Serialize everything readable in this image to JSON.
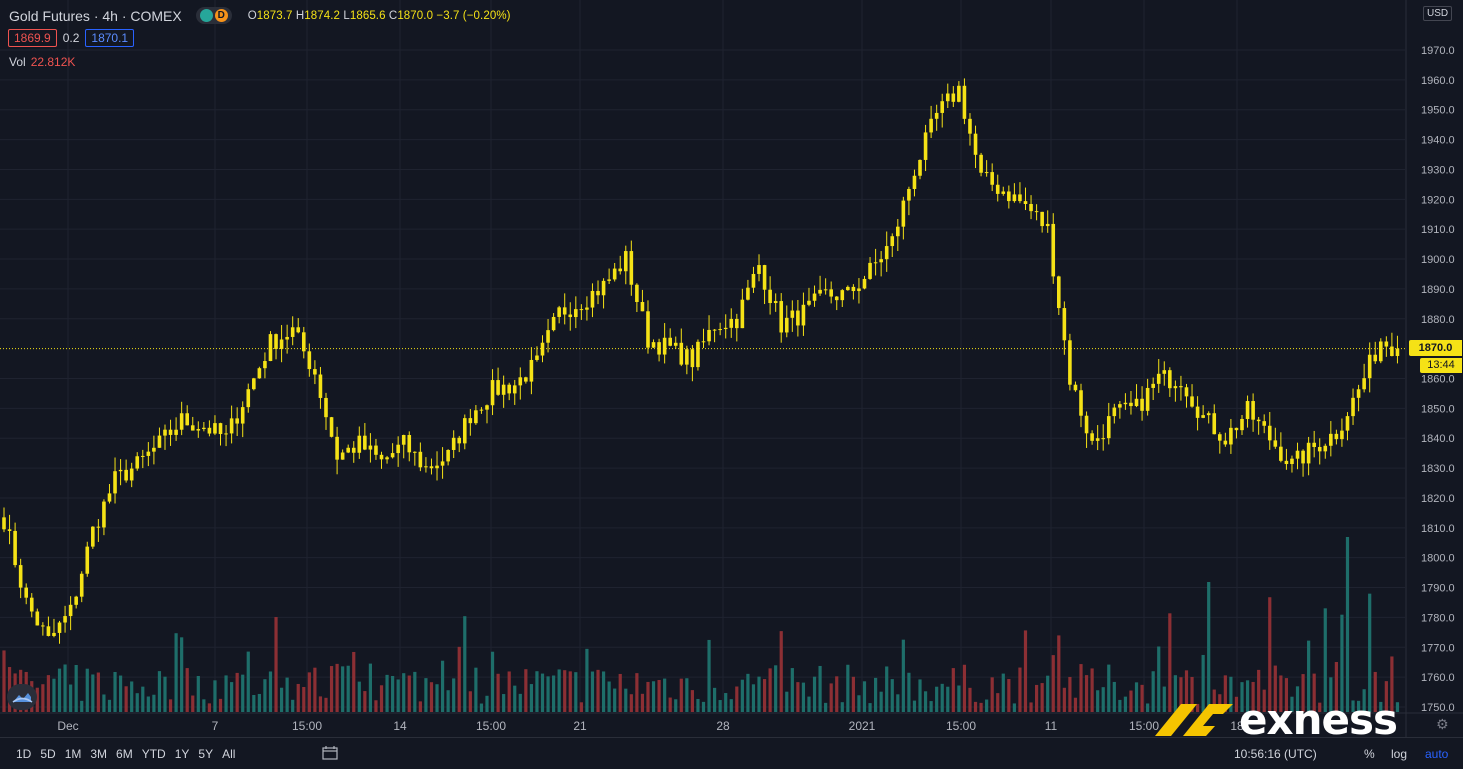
{
  "header": {
    "symbol": "Gold Futures · 4h · COMEX",
    "badge_d": "D",
    "ohlc": {
      "o_label": "O",
      "o": "1873.7",
      "h_label": "H",
      "h": "1874.2",
      "l_label": "L",
      "l": "1865.6",
      "c_label": "C",
      "c": "1870.0",
      "change": "−3.7 (−0.20%)"
    },
    "bid": "1869.9",
    "spread": "0.2",
    "ask": "1870.1",
    "vol_label": "Vol",
    "vol_value": "22.812K"
  },
  "price_axis": {
    "currency": "USD",
    "current_price": "1870.0",
    "countdown": "13:44",
    "ticks": [
      "1970.0",
      "1960.0",
      "1950.0",
      "1940.0",
      "1930.0",
      "1920.0",
      "1910.0",
      "1900.0",
      "1890.0",
      "1880.0",
      "1860.0",
      "1850.0",
      "1840.0",
      "1830.0",
      "1820.0",
      "1810.0",
      "1800.0",
      "1790.0",
      "1780.0",
      "1770.0",
      "1760.0",
      "1750.0"
    ]
  },
  "time_axis": {
    "labels": [
      "Dec",
      "7",
      "15:00",
      "14",
      "15:00",
      "21",
      "28",
      "2021",
      "15:00",
      "11",
      "15:00",
      "18"
    ]
  },
  "bottom_bar": {
    "ranges": [
      "1D",
      "5D",
      "1M",
      "3M",
      "6M",
      "YTD",
      "1Y",
      "5Y",
      "All"
    ],
    "clock": "10:56:16 (UTC)",
    "percent": "%",
    "log": "log",
    "auto": "auto"
  },
  "branding": {
    "logo_text": "exness"
  },
  "colors": {
    "candle": "#f5e216",
    "vol_up": "#1e6e6a",
    "vol_down": "#8c2f34",
    "background": "#131722",
    "grid": "#1f2330",
    "axis_text": "#b2b5be"
  },
  "chart_data": {
    "type": "candlestick",
    "title": "",
    "xlabel": "",
    "ylabel": "",
    "ylim": [
      1745,
      1975
    ],
    "current_price": 1870.0,
    "close_path": [
      [
        0,
        1813
      ],
      [
        4,
        1785
      ],
      [
        8,
        1772
      ],
      [
        12,
        1782
      ],
      [
        16,
        1809
      ],
      [
        20,
        1826
      ],
      [
        24,
        1831
      ],
      [
        28,
        1838
      ],
      [
        32,
        1846
      ],
      [
        36,
        1844
      ],
      [
        40,
        1840
      ],
      [
        44,
        1856
      ],
      [
        48,
        1872
      ],
      [
        52,
        1876
      ],
      [
        56,
        1862
      ],
      [
        60,
        1834
      ],
      [
        64,
        1838
      ],
      [
        68,
        1832
      ],
      [
        72,
        1838
      ],
      [
        76,
        1830
      ],
      [
        80,
        1834
      ],
      [
        84,
        1848
      ],
      [
        88,
        1856
      ],
      [
        92,
        1858
      ],
      [
        96,
        1865
      ],
      [
        100,
        1882
      ],
      [
        104,
        1886
      ],
      [
        108,
        1891
      ],
      [
        112,
        1900
      ],
      [
        116,
        1873
      ],
      [
        120,
        1870
      ],
      [
        124,
        1866
      ],
      [
        128,
        1878
      ],
      [
        132,
        1880
      ],
      [
        136,
        1898
      ],
      [
        140,
        1878
      ],
      [
        144,
        1882
      ],
      [
        148,
        1888
      ],
      [
        152,
        1888
      ],
      [
        156,
        1896
      ],
      [
        160,
        1906
      ],
      [
        164,
        1930
      ],
      [
        168,
        1948
      ],
      [
        172,
        1957
      ],
      [
        176,
        1927
      ],
      [
        180,
        1923
      ],
      [
        184,
        1918
      ],
      [
        188,
        1910
      ],
      [
        192,
        1860
      ],
      [
        196,
        1838
      ],
      [
        200,
        1848
      ],
      [
        204,
        1850
      ],
      [
        208,
        1860
      ],
      [
        212,
        1860
      ],
      [
        216,
        1847
      ],
      [
        220,
        1840
      ],
      [
        224,
        1849
      ],
      [
        228,
        1840
      ],
      [
        232,
        1831
      ],
      [
        236,
        1837
      ],
      [
        240,
        1842
      ],
      [
        244,
        1856
      ],
      [
        248,
        1873
      ],
      [
        251,
        1870
      ]
    ],
    "volume_rule": "volume bar per candle; colored green if candle closes up, red if down"
  }
}
